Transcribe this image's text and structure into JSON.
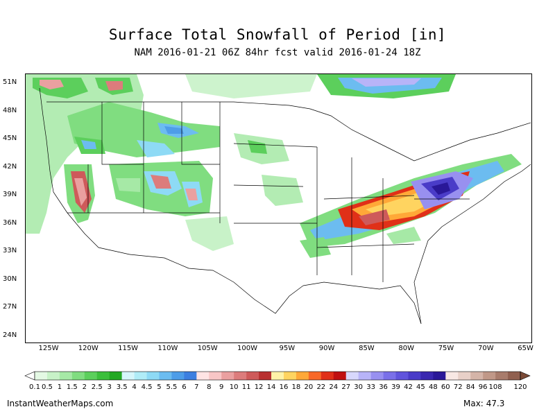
{
  "title": "Surface Total Snowfall of Period [in]",
  "subtitle": "NAM 2016-01-21 06Z 84hr fcst valid 2016-01-24 18Z",
  "credit": "InstantWeatherMaps.com",
  "max_label": "Max:",
  "max_value": "47.3",
  "lat_ticks": [
    "51N",
    "48N",
    "45N",
    "42N",
    "39N",
    "36N",
    "33N",
    "30N",
    "27N",
    "24N"
  ],
  "lon_ticks": [
    "125W",
    "120W",
    "115W",
    "110W",
    "105W",
    "100W",
    "95W",
    "90W",
    "85W",
    "80W",
    "75W",
    "70W",
    "65W"
  ],
  "legend": {
    "labels": [
      "0.1",
      "0.5",
      "1",
      "1.5",
      "2",
      "2.5",
      "3",
      "3.5",
      "4",
      "4.5",
      "5",
      "5.5",
      "6",
      "7",
      "8",
      "9",
      "10",
      "11",
      "12",
      "14",
      "16",
      "18",
      "20",
      "22",
      "24",
      "27",
      "30",
      "33",
      "36",
      "39",
      "42",
      "45",
      "48",
      "60",
      "72",
      "84",
      "96",
      "108",
      "120"
    ],
    "colors": [
      "#e4f9e4",
      "#c8f2c8",
      "#a6e9a6",
      "#80dd80",
      "#5ccf5c",
      "#3cbf3c",
      "#22a822",
      "#d6f6fb",
      "#b0ecf7",
      "#8edaf5",
      "#6cbcf0",
      "#4e9de8",
      "#3c7fe0",
      "#ffe4e4",
      "#f8c6c6",
      "#eaa0a0",
      "#dc7c7c",
      "#ce5a5a",
      "#b83030",
      "#fff2a8",
      "#ffd460",
      "#ffa838",
      "#f86828",
      "#e03018",
      "#c01010",
      "#d8d8fc",
      "#b8b4f8",
      "#9890f0",
      "#7a70e8",
      "#6054dc",
      "#4a3cc8",
      "#3a28b0",
      "#2a1898",
      "#f8e8e4",
      "#e8d0c8",
      "#d4b4a8",
      "#c09888",
      "#a87c6c",
      "#906050"
    ],
    "below_color": "#ffffff",
    "above_color": "#7a4a36"
  }
}
